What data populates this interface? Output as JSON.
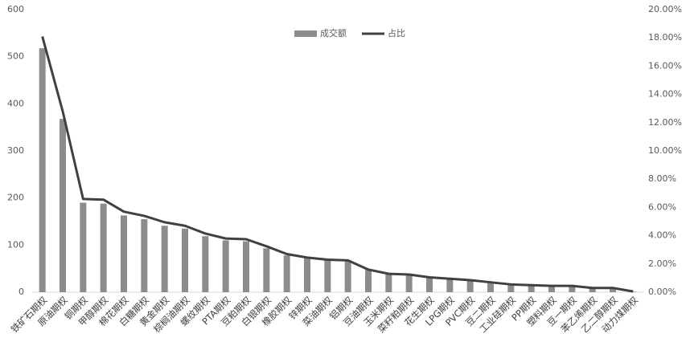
{
  "chart_data": {
    "type": "bar_line",
    "categories": [
      "铁矿石期权",
      "原油期权",
      "铜期权",
      "甲醇期权",
      "棉花期权",
      "白糖期权",
      "黄金期权",
      "棕榈油期权",
      "螺纹期权",
      "PTA期权",
      "豆粕期权",
      "白银期权",
      "橡胶期权",
      "锌期权",
      "菜油期权",
      "铝期权",
      "豆油期权",
      "玉米期权",
      "菜籽粕期权",
      "花生期权",
      "LPG期权",
      "PVC期权",
      "豆二期权",
      "工业硅期权",
      "PP期权",
      "塑料期权",
      "豆一期权",
      "苯乙烯期权",
      "乙二醇期权",
      "动力煤期权"
    ],
    "series": [
      {
        "name": "成交额",
        "type": "bar",
        "color": "#8c8c8c",
        "values": [
          518,
          368,
          190,
          188,
          163,
          155,
          141,
          135,
          119,
          110,
          108,
          93,
          78,
          72,
          68,
          67,
          47,
          38,
          37,
          30,
          27,
          25,
          20,
          15,
          14,
          13,
          12,
          8,
          7,
          1
        ]
      },
      {
        "name": "占比",
        "type": "line",
        "axis": "y2",
        "color": "#404040",
        "values": [
          18.1,
          12.8,
          6.6,
          6.55,
          5.7,
          5.4,
          4.95,
          4.7,
          4.15,
          3.8,
          3.75,
          3.25,
          2.7,
          2.45,
          2.3,
          2.25,
          1.6,
          1.3,
          1.25,
          1.05,
          0.95,
          0.85,
          0.7,
          0.55,
          0.5,
          0.45,
          0.45,
          0.3,
          0.3,
          0.05
        ]
      }
    ],
    "ylim": [
      0,
      600
    ],
    "yticks": [
      0,
      100,
      200,
      300,
      400,
      500,
      600
    ],
    "y2lim": [
      0,
      20
    ],
    "y2ticks": [
      {
        "value": 0,
        "label": "0.00%"
      },
      {
        "value": 2,
        "label": "2.00%"
      },
      {
        "value": 4,
        "label": "4.00%"
      },
      {
        "value": 6,
        "label": "6.00%"
      },
      {
        "value": 8,
        "label": "8.00%"
      },
      {
        "value": 10,
        "label": "10.00%"
      },
      {
        "value": 12,
        "label": "12.00%"
      },
      {
        "value": 14,
        "label": "14.00%"
      },
      {
        "value": 16,
        "label": "16.00%"
      },
      {
        "value": 18,
        "label": "18.00%"
      },
      {
        "value": 20,
        "label": "20.00%"
      }
    ],
    "legend": "top"
  }
}
